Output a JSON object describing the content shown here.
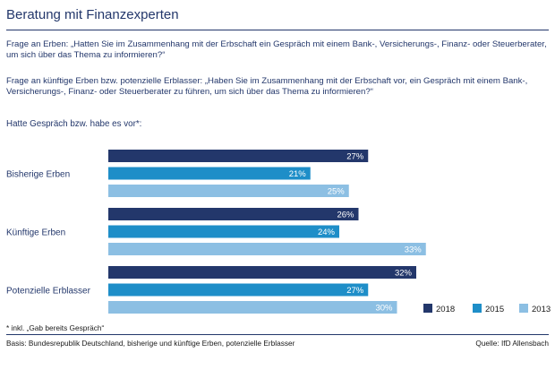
{
  "header": {
    "title": "Beratung mit Finanzexperten",
    "question_heirs": "Frage an Erben: „Hatten Sie im Zusammenhang mit der Erbschaft ein Gespräch mit einem Bank-, Versicherungs-, Finanz- oder Steuerberater, um sich über das Thema zu informieren?“",
    "question_future": "Frage an künftige Erben bzw. potenzielle Erblasser: „Haben Sie im Zusammenhang mit der Erbschaft vor, ein Gespräch mit einem Bank-, Versicherungs-, Finanz- oder Steuerberater zu führen, um sich über das Thema zu informieren?“",
    "subhead": "Hatte Gespräch bzw. habe es vor*:"
  },
  "footer": {
    "footnote": "* inkl. „Gab bereits Gespräch“",
    "basis": "Basis: Bundesrepublik Deutschland, bisherige und künftige Erben, potenzielle Erblasser",
    "source": "Quelle: IfD Allensbach"
  },
  "colors": {
    "2018": "#23376b",
    "2015": "#1e8ec8",
    "2013": "#8cbfe3",
    "text_accent": "#23376b"
  },
  "chart_data": {
    "type": "bar",
    "orientation": "horizontal",
    "categories": [
      "Bisherige Erben",
      "Künftige Erben",
      "Potenzielle Erblasser"
    ],
    "series": [
      {
        "name": "2018",
        "values": [
          27,
          26,
          32
        ]
      },
      {
        "name": "2015",
        "values": [
          21,
          24,
          27
        ]
      },
      {
        "name": "2013",
        "values": [
          25,
          33,
          30
        ]
      }
    ],
    "value_suffix": "%",
    "xlim": [
      0,
      40
    ],
    "grid": false,
    "legend_position": "bottom-right"
  }
}
